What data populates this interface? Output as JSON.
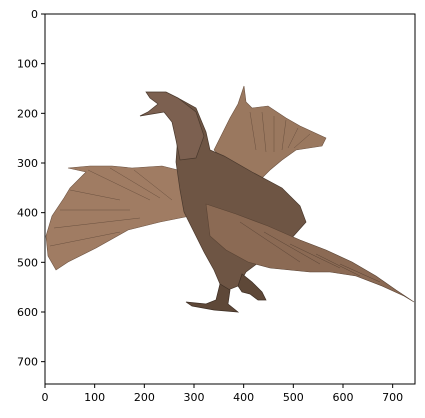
{
  "figure": {
    "subject": "origami-bird",
    "x_range": [
      0,
      745
    ],
    "y_range": [
      745,
      0
    ],
    "x_ticks": [
      {
        "value": 0,
        "label": "0"
      },
      {
        "value": 100,
        "label": "100"
      },
      {
        "value": 200,
        "label": "200"
      },
      {
        "value": 300,
        "label": "300"
      },
      {
        "value": 400,
        "label": "400"
      },
      {
        "value": 500,
        "label": "500"
      },
      {
        "value": 600,
        "label": "600"
      },
      {
        "value": 700,
        "label": "700"
      }
    ],
    "y_ticks": [
      {
        "value": 0,
        "label": "0"
      },
      {
        "value": 100,
        "label": "100"
      },
      {
        "value": 200,
        "label": "200"
      },
      {
        "value": 300,
        "label": "300"
      },
      {
        "value": 400,
        "label": "400"
      },
      {
        "value": 500,
        "label": "500"
      },
      {
        "value": 600,
        "label": "600"
      },
      {
        "value": 700,
        "label": "700"
      }
    ],
    "colors": {
      "paper_light": "#a4826a",
      "paper_mid": "#8a6a52",
      "paper_dark": "#5c4636",
      "paper_shadow": "#3e2f25",
      "axis": "#000000"
    }
  }
}
